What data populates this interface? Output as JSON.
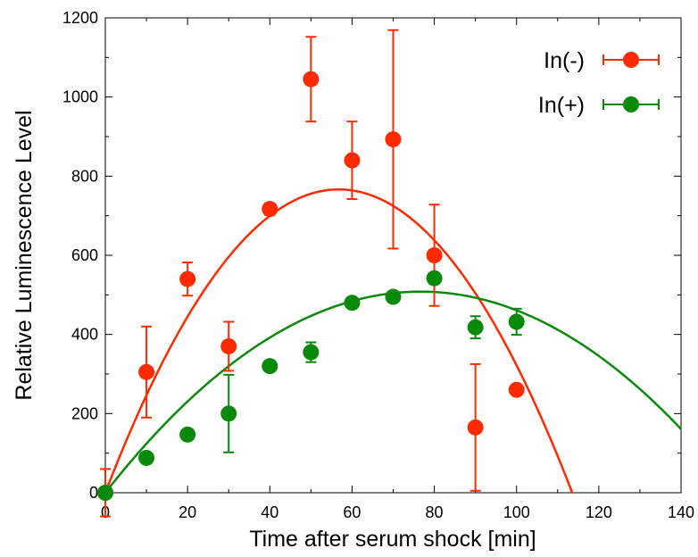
{
  "chart_data": {
    "type": "scatter",
    "xlabel": "Time after serum shock [min]",
    "ylabel": "Relative Luminescence Level",
    "xlim": [
      0,
      140
    ],
    "ylim": [
      0,
      1200
    ],
    "xticks": [
      0,
      20,
      40,
      60,
      80,
      100,
      120,
      140
    ],
    "yticks": [
      0,
      200,
      400,
      600,
      800,
      1000,
      1200
    ],
    "legend_position": "top-right",
    "grid": false,
    "series": [
      {
        "name": "In(-)",
        "color": "#ff2a00",
        "points": [
          {
            "x": 0,
            "y": 0,
            "err": 60
          },
          {
            "x": 10,
            "y": 305,
            "err": 115
          },
          {
            "x": 20,
            "y": 540,
            "err": 42
          },
          {
            "x": 30,
            "y": 370,
            "err": 62
          },
          {
            "x": 40,
            "y": 717,
            "err": 15
          },
          {
            "x": 50,
            "y": 1045,
            "err": 107
          },
          {
            "x": 60,
            "y": 840,
            "err": 98
          },
          {
            "x": 70,
            "y": 893,
            "err": 276
          },
          {
            "x": 80,
            "y": 600,
            "err": 128
          },
          {
            "x": 90,
            "y": 165,
            "err": 160
          },
          {
            "x": 100,
            "y": 260,
            "err": 8
          }
        ],
        "fit": {
          "type": "quadratic",
          "a": -0.2378,
          "b": 27.0,
          "c": 0
        }
      },
      {
        "name": "In(+)",
        "color": "#0a8a0a",
        "points": [
          {
            "x": 0,
            "y": 0,
            "err": 5
          },
          {
            "x": 10,
            "y": 88,
            "err": 8
          },
          {
            "x": 20,
            "y": 147,
            "err": 8
          },
          {
            "x": 30,
            "y": 200,
            "err": 98
          },
          {
            "x": 40,
            "y": 320,
            "err": 8
          },
          {
            "x": 50,
            "y": 355,
            "err": 25
          },
          {
            "x": 60,
            "y": 480,
            "err": 8
          },
          {
            "x": 70,
            "y": 495,
            "err": 8
          },
          {
            "x": 80,
            "y": 542,
            "err": 8
          },
          {
            "x": 90,
            "y": 418,
            "err": 28
          },
          {
            "x": 100,
            "y": 432,
            "err": 33
          }
        ],
        "fit": {
          "type": "quadratic",
          "a": -0.0865,
          "b": 13.26,
          "c": 0
        }
      }
    ]
  }
}
